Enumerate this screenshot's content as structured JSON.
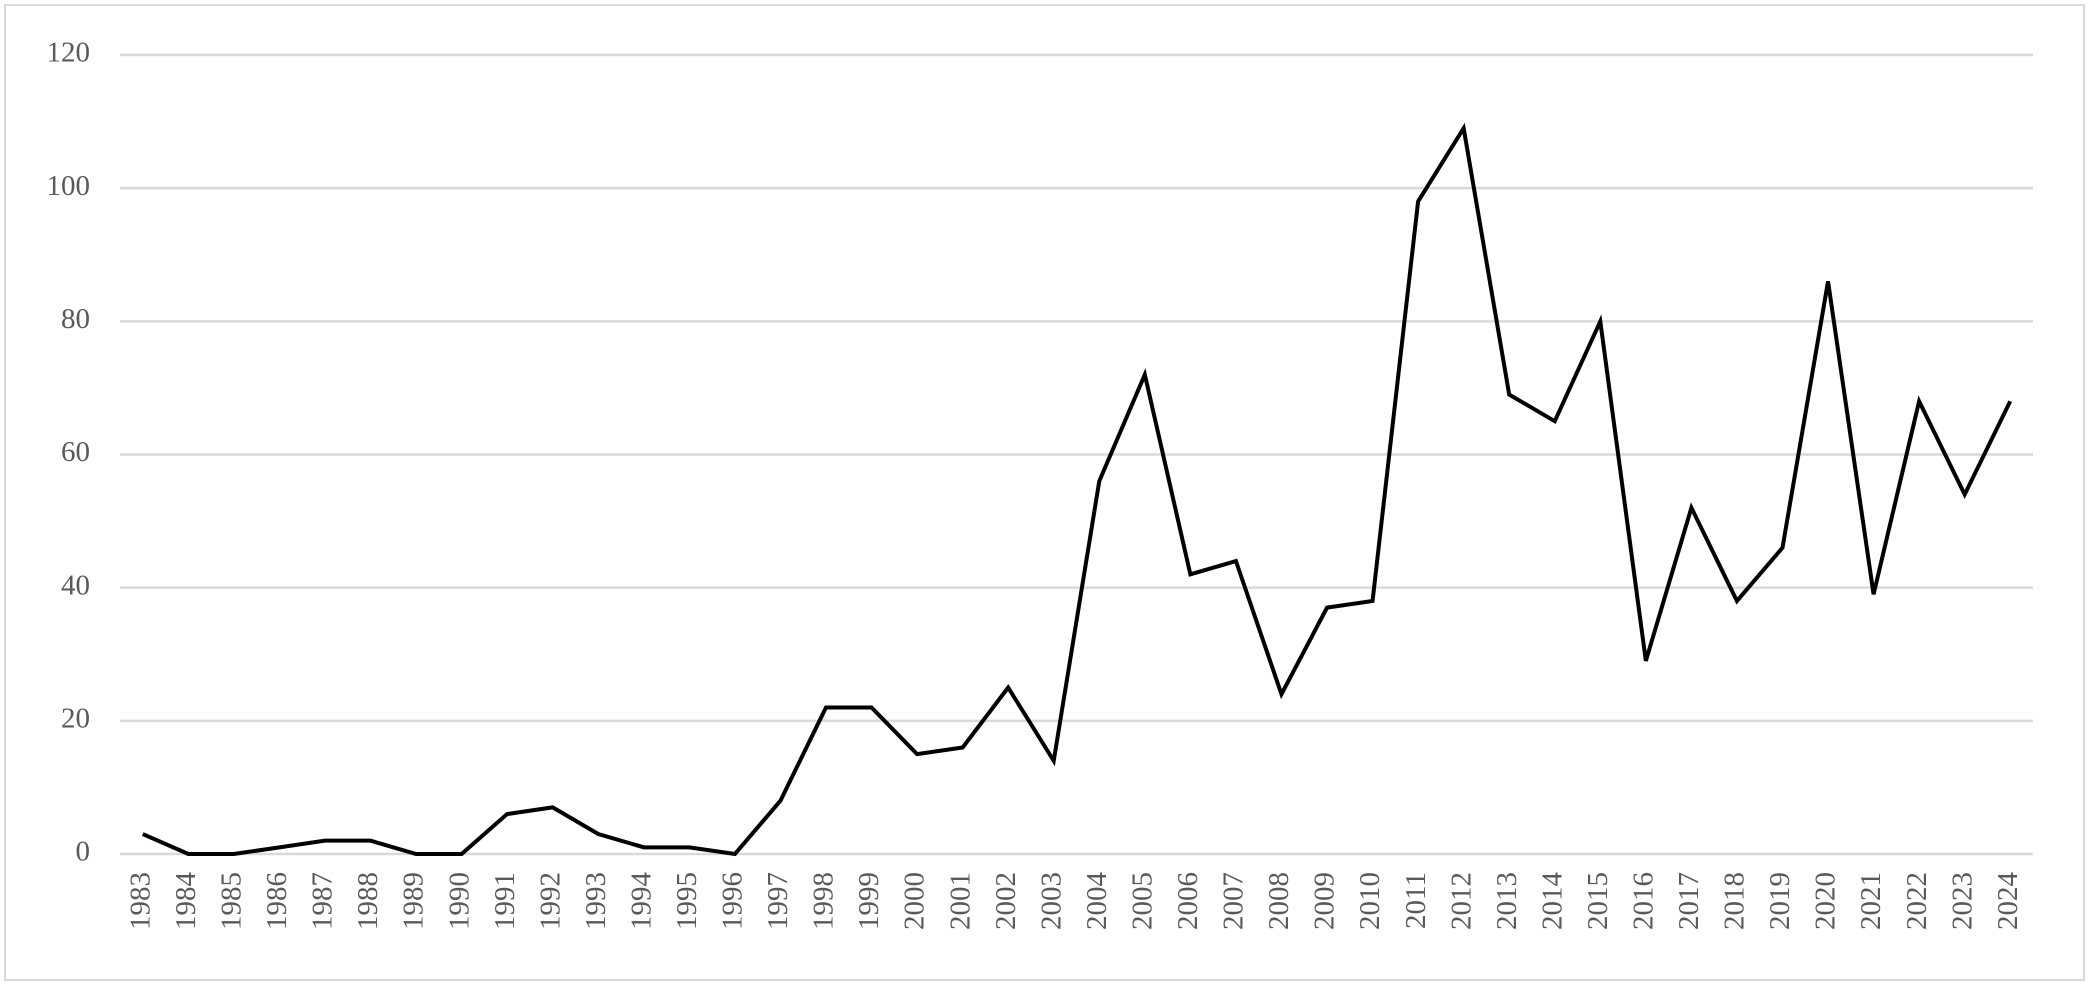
{
  "chart_data": {
    "type": "line",
    "categories": [
      "1983",
      "1984",
      "1985",
      "1986",
      "1987",
      "1988",
      "1989",
      "1990",
      "1991",
      "1992",
      "1993",
      "1994",
      "1995",
      "1996",
      "1997",
      "1998",
      "1999",
      "2000",
      "2001",
      "2002",
      "2003",
      "2004",
      "2005",
      "2006",
      "2007",
      "2008",
      "2009",
      "2010",
      "2011",
      "2012",
      "2013",
      "2014",
      "2015",
      "2016",
      "2017",
      "2018",
      "2019",
      "2020",
      "2021",
      "2022",
      "2023",
      "2024"
    ],
    "series": [
      {
        "color": "#000000",
        "values": [
          3,
          0,
          0,
          1,
          2,
          2,
          0,
          0,
          6,
          7,
          3,
          1,
          1,
          0,
          8,
          22,
          22,
          15,
          16,
          25,
          14,
          56,
          72,
          42,
          44,
          24,
          37,
          38,
          98,
          109,
          69,
          65,
          80,
          29,
          52,
          38,
          46,
          86,
          39,
          68,
          54,
          68
        ]
      }
    ],
    "ylim": [
      0,
      120
    ],
    "yticks": [
      0,
      20,
      40,
      60,
      80,
      100,
      120
    ],
    "grid": true
  }
}
